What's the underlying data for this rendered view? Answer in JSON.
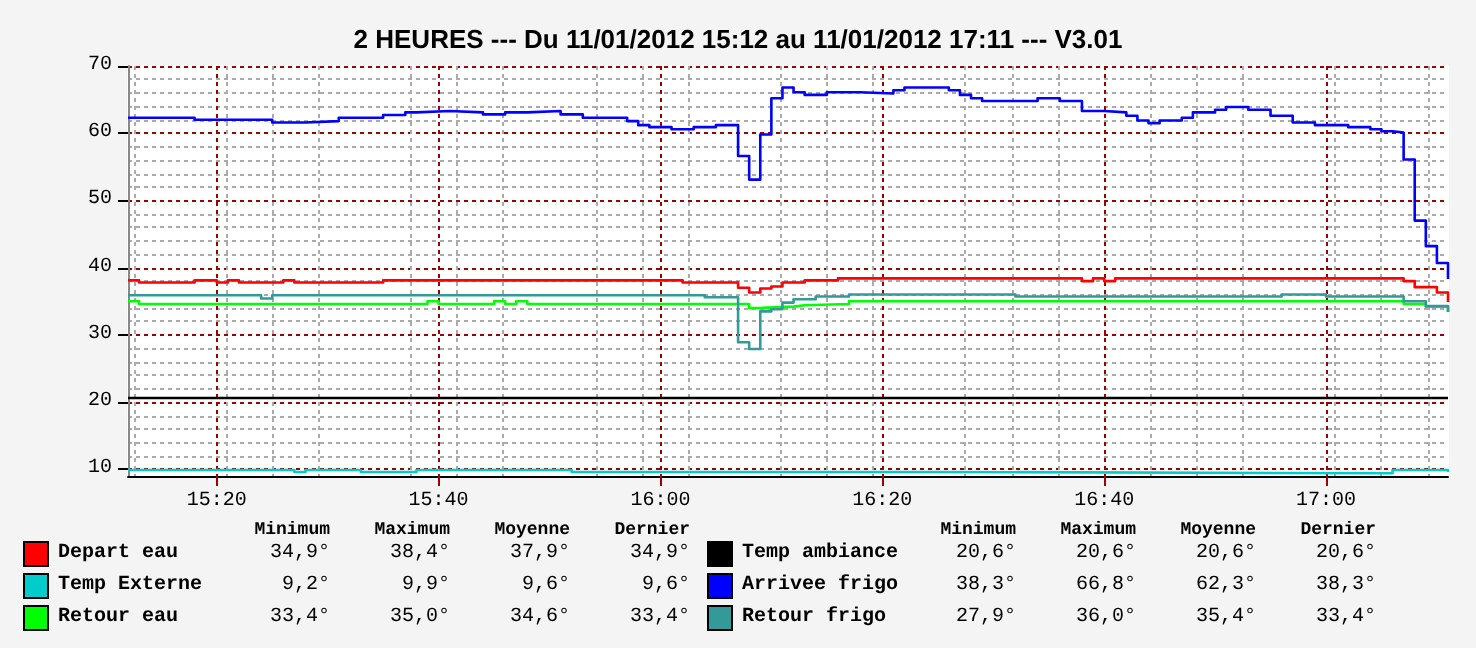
{
  "chart_data": {
    "type": "step",
    "title": "2 HEURES --- Du 11/01/2012 15:12 au 11/01/2012 17:11 --- V3.01",
    "xlim": [
      "2012-01-11T15:12",
      "2012-01-11T17:11"
    ],
    "xticks": [
      {
        "value": "2012-01-11T15:20",
        "label": "15:20"
      },
      {
        "value": "2012-01-11T15:40",
        "label": "15:40"
      },
      {
        "value": "2012-01-11T16:00",
        "label": "16:00"
      },
      {
        "value": "2012-01-11T16:20",
        "label": "16:20"
      },
      {
        "value": "2012-01-11T16:40",
        "label": "16:40"
      },
      {
        "value": "2012-01-11T17:00",
        "label": "17:00"
      }
    ],
    "ylim": [
      9,
      70
    ],
    "yticks": [
      10,
      20,
      30,
      40,
      50,
      60,
      70
    ],
    "grid": true,
    "legend": "bottom",
    "series": [
      {
        "name": "Depart eau",
        "color": "#ff0000",
        "x": [
          "2012-01-11T15:12",
          "2012-01-11T15:13",
          "2012-01-11T15:18",
          "2012-01-11T15:20",
          "2012-01-11T15:21",
          "2012-01-11T15:22",
          "2012-01-11T15:26",
          "2012-01-11T15:27",
          "2012-01-11T15:35",
          "2012-01-11T16:02",
          "2012-01-11T16:07",
          "2012-01-11T16:08",
          "2012-01-11T16:09",
          "2012-01-11T16:10",
          "2012-01-11T16:11",
          "2012-01-11T16:13",
          "2012-01-11T16:16",
          "2012-01-11T16:38",
          "2012-01-11T16:39",
          "2012-01-11T16:40",
          "2012-01-11T16:41",
          "2012-01-11T17:07",
          "2012-01-11T17:08",
          "2012-01-11T17:10",
          "2012-01-11T17:11"
        ],
        "values": [
          38.1,
          37.8,
          38.1,
          37.8,
          38.1,
          37.8,
          38.1,
          37.8,
          38.1,
          37.8,
          37.0,
          36.3,
          36.9,
          37.2,
          37.8,
          38.1,
          38.4,
          38.0,
          38.4,
          38.0,
          38.4,
          38.0,
          37.1,
          36.3,
          34.9
        ]
      },
      {
        "name": "Temp Externe",
        "color": "#00cccc",
        "x": [
          "2012-01-11T15:12",
          "2012-01-11T15:27",
          "2012-01-11T15:28",
          "2012-01-11T15:33",
          "2012-01-11T15:38",
          "2012-01-11T15:52",
          "2012-01-11T16:26",
          "2012-01-11T17:06",
          "2012-01-11T17:11"
        ],
        "values": [
          9.9,
          9.6,
          9.9,
          9.6,
          9.9,
          9.6,
          9.4,
          9.9,
          9.6
        ]
      },
      {
        "name": "Retour eau",
        "color": "#00ff00",
        "x": [
          "2012-01-11T15:12",
          "2012-01-11T15:13",
          "2012-01-11T15:39",
          "2012-01-11T15:40",
          "2012-01-11T15:45",
          "2012-01-11T15:46",
          "2012-01-11T15:47",
          "2012-01-11T15:48",
          "2012-01-11T16:08",
          "2012-01-11T16:09",
          "2012-01-11T16:12",
          "2012-01-11T16:13",
          "2012-01-11T16:17",
          "2012-01-11T17:07",
          "2012-01-11T17:09",
          "2012-01-11T17:11"
        ],
        "values": [
          35.0,
          34.6,
          35.0,
          34.6,
          35.0,
          34.6,
          35.0,
          34.6,
          34.0,
          34.2,
          34.4,
          34.6,
          35.0,
          34.6,
          34.2,
          33.4
        ]
      },
      {
        "name": "Temp ambiance",
        "color": "#000000",
        "x": [
          "2012-01-11T15:12",
          "2012-01-11T17:11"
        ],
        "values": [
          20.6,
          20.6
        ]
      },
      {
        "name": "Arrivee frigo",
        "color": "#0000ff",
        "x": [
          "2012-01-11T15:12",
          "2012-01-11T15:18",
          "2012-01-11T15:25",
          "2012-01-11T15:28",
          "2012-01-11T15:31",
          "2012-01-11T15:35",
          "2012-01-11T15:37",
          "2012-01-11T15:38",
          "2012-01-11T15:41",
          "2012-01-11T15:44",
          "2012-01-11T15:46",
          "2012-01-11T15:48",
          "2012-01-11T15:51",
          "2012-01-11T15:53",
          "2012-01-11T15:57",
          "2012-01-11T15:58",
          "2012-01-11T15:59",
          "2012-01-11T16:01",
          "2012-01-11T16:03",
          "2012-01-11T16:05",
          "2012-01-11T16:07",
          "2012-01-11T16:08",
          "2012-01-11T16:09",
          "2012-01-11T16:10",
          "2012-01-11T16:11",
          "2012-01-11T16:12",
          "2012-01-11T16:13",
          "2012-01-11T16:15",
          "2012-01-11T16:18",
          "2012-01-11T16:21",
          "2012-01-11T16:22",
          "2012-01-11T16:26",
          "2012-01-11T16:27",
          "2012-01-11T16:28",
          "2012-01-11T16:29",
          "2012-01-11T16:34",
          "2012-01-11T16:36",
          "2012-01-11T16:38",
          "2012-01-11T16:40",
          "2012-01-11T16:42",
          "2012-01-11T16:43",
          "2012-01-11T16:44",
          "2012-01-11T16:45",
          "2012-01-11T16:47",
          "2012-01-11T16:48",
          "2012-01-11T16:50",
          "2012-01-11T16:51",
          "2012-01-11T16:53",
          "2012-01-11T16:55",
          "2012-01-11T16:57",
          "2012-01-11T16:59",
          "2012-01-11T17:02",
          "2012-01-11T17:04",
          "2012-01-11T17:05",
          "2012-01-11T17:06",
          "2012-01-11T17:07",
          "2012-01-11T17:08",
          "2012-01-11T17:09",
          "2012-01-11T17:10",
          "2012-01-11T17:11"
        ],
        "values": [
          62.3,
          62.0,
          61.6,
          61.8,
          62.3,
          62.7,
          63.1,
          63.3,
          63.1,
          62.8,
          63.1,
          63.3,
          62.8,
          62.3,
          61.8,
          61.2,
          60.9,
          60.6,
          60.9,
          61.2,
          56.6,
          53.1,
          59.8,
          65.2,
          66.8,
          66.1,
          65.7,
          66.1,
          65.9,
          66.4,
          66.8,
          66.4,
          65.7,
          65.2,
          64.8,
          65.2,
          64.8,
          63.3,
          63.1,
          62.6,
          61.9,
          61.5,
          61.9,
          62.3,
          63.1,
          63.5,
          63.9,
          63.5,
          62.6,
          61.6,
          61.2,
          60.9,
          60.6,
          60.3,
          60.1,
          56.1,
          47.0,
          43.2,
          40.7,
          38.3
        ]
      },
      {
        "name": "Retour frigo",
        "color": "#339999",
        "x": [
          "2012-01-11T15:12",
          "2012-01-11T15:24",
          "2012-01-11T15:25",
          "2012-01-11T16:04",
          "2012-01-11T16:07",
          "2012-01-11T16:08",
          "2012-01-11T16:09",
          "2012-01-11T16:10",
          "2012-01-11T16:11",
          "2012-01-11T16:12",
          "2012-01-11T16:14",
          "2012-01-11T16:17",
          "2012-01-11T16:32",
          "2012-01-11T16:56",
          "2012-01-11T17:00",
          "2012-01-11T17:07",
          "2012-01-11T17:09",
          "2012-01-11T17:11"
        ],
        "values": [
          35.9,
          35.4,
          35.9,
          35.6,
          28.9,
          27.9,
          33.5,
          33.8,
          34.8,
          35.3,
          35.7,
          36.0,
          35.7,
          36.0,
          35.7,
          35.0,
          34.3,
          33.4
        ]
      }
    ],
    "annotations": [
      "Minimum",
      "Maximum",
      "Moyenne",
      "Dernier",
      "Minimum",
      "Maximum",
      "Moyenne",
      "Dernier",
      "34,9°",
      "38,4°",
      "37,9°",
      "34,9°",
      "9,2°",
      "9,9°",
      "9,6°",
      "9,6°",
      "33,4°",
      "35,0°",
      "34,6°",
      "33,4°",
      "20,6°",
      "20,6°",
      "20,6°",
      "20,6°",
      "38,3°",
      "66,8°",
      "62,3°",
      "38,3°",
      "27,9°",
      "36,0°",
      "35,4°",
      "33,4°"
    ]
  }
}
